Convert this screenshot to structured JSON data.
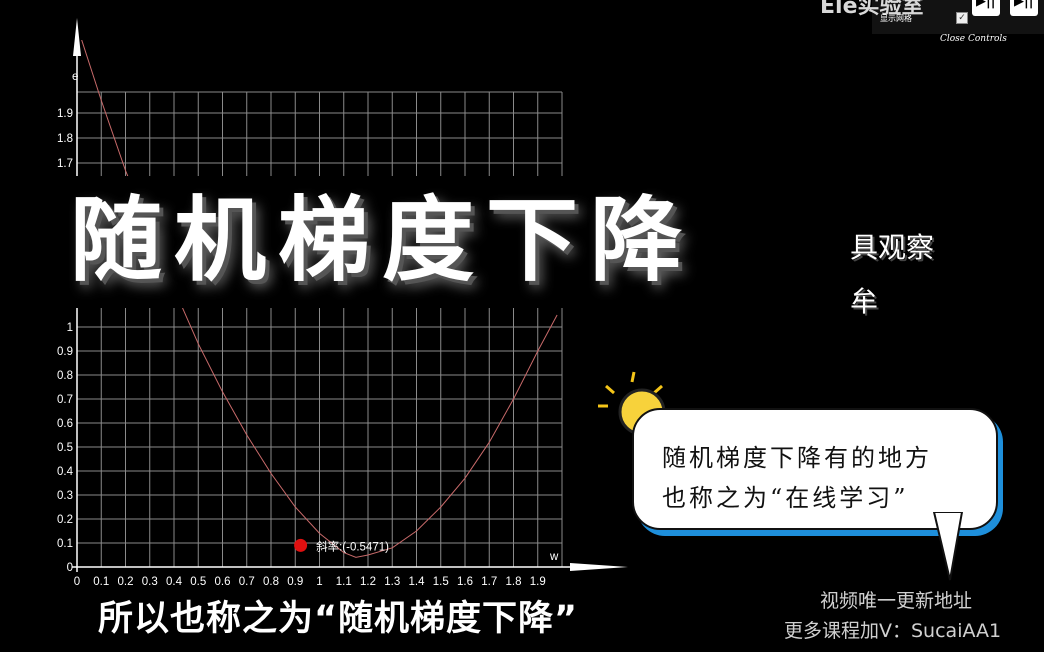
{
  "header": {
    "title": "Ele实验室",
    "controls": {
      "show_grid_label": "显示网格",
      "show_grid_checked": true,
      "close_label": "Close Controls"
    }
  },
  "overlay": {
    "big_title": "随机梯度下降",
    "fragment_right_1": "具观察",
    "fragment_right_2": "牟"
  },
  "callout": {
    "line1": "随机梯度下降有的地方",
    "line2": "也称之为“在线学习”",
    "accent_color": "#1e8fdb"
  },
  "subtitle": "所以也称之为“随机梯度下降”",
  "watermark": {
    "line1": "视频唯一更新地址",
    "line2": "更多课程加V：SucaiAA1"
  },
  "chart_data": {
    "type": "line",
    "xlabel": "w",
    "ylabel": "e",
    "xlim": [
      0,
      2.0
    ],
    "ylim": [
      0,
      2.0
    ],
    "x_ticks": [
      "0",
      "0.1",
      "0.2",
      "0.3",
      "0.4",
      "0.5",
      "0.6",
      "0.7",
      "0.8",
      "0.9",
      "1",
      "1.1",
      "1.2",
      "1.3",
      "1.4",
      "1.5",
      "1.6",
      "1.7",
      "1.8",
      "1.9"
    ],
    "y_ticks": [
      "0",
      "0.1",
      "0.2",
      "0.3",
      "0.4",
      "0.5",
      "0.6",
      "0.7",
      "0.8",
      "0.9",
      "1",
      "1.7",
      "1.8",
      "1.9"
    ],
    "grid": true,
    "curve": {
      "x": [
        0.0,
        0.1,
        0.2,
        0.3,
        0.4,
        0.5,
        0.6,
        0.7,
        0.8,
        0.9,
        1.0,
        1.1,
        1.15,
        1.2,
        1.3,
        1.4,
        1.5,
        1.6,
        1.7,
        1.8,
        1.9,
        1.98
      ],
      "y": [
        2.25,
        1.95,
        1.67,
        1.4,
        1.16,
        0.93,
        0.73,
        0.55,
        0.39,
        0.25,
        0.14,
        0.06,
        0.04,
        0.05,
        0.08,
        0.15,
        0.25,
        0.37,
        0.52,
        0.7,
        0.9,
        1.05
      ],
      "color": "#c86a6a"
    },
    "point": {
      "x": 0.92,
      "y": 0.09,
      "color": "#e01010",
      "label": "斜率:(-0.5471)"
    }
  }
}
